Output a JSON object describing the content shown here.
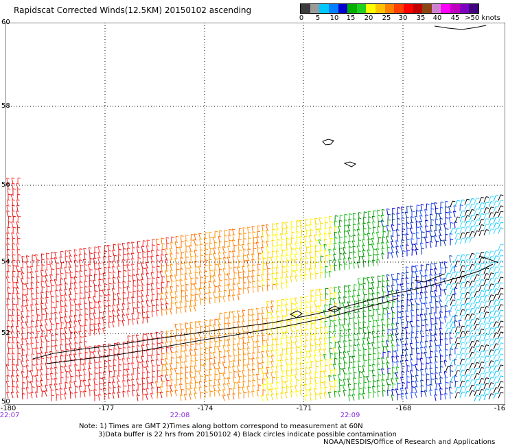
{
  "title": "Rapidscat Corrected Winds(12.5KM) 20150102 ascending",
  "legend": {
    "ticks": [
      "0",
      "5",
      "10",
      "15",
      "20",
      "25",
      "30",
      "35",
      "40",
      "45",
      ">50 knots"
    ],
    "colors": [
      "#3c3c3c",
      "#9a9a9a",
      "#00c8ff",
      "#0080ff",
      "#0000d0",
      "#00b000",
      "#20d020",
      "#ffff00",
      "#ffc000",
      "#ff8000",
      "#ff4000",
      "#ff0000",
      "#c00000",
      "#8b4513",
      "#d080d0",
      "#ff00ff",
      "#c000c0",
      "#8000c0",
      "#400080"
    ]
  },
  "axes": {
    "lat_labels": [
      "60",
      "58",
      "56",
      "54",
      "52",
      "50"
    ],
    "lon_labels": [
      "-180",
      "-177",
      "-174",
      "-171",
      "-168",
      "-16"
    ],
    "times": [
      "22:07",
      "22:08",
      "22:09"
    ]
  },
  "notes": {
    "line1": "Note: 1) Times are GMT 2)Times along bottom correspond to measurement at 60N",
    "line2": "3)Data buffer is 22 hrs from 20150102 4) Black circles indicate possible contamination",
    "line3": "NOAA/NESDIS/Office of Research and Applications"
  },
  "wind_field": {
    "speed_bands": [
      {
        "region": "west",
        "color_name": "red",
        "knots": 32
      },
      {
        "region": "central-west",
        "color_name": "orange",
        "knots": 27
      },
      {
        "region": "central",
        "color_name": "yellow",
        "knots": 22
      },
      {
        "region": "central-east",
        "color_name": "green",
        "knots": 17
      },
      {
        "region": "east",
        "color_name": "blue",
        "knots": 12
      },
      {
        "region": "far-east",
        "color_name": "cyan",
        "knots": 8
      }
    ]
  }
}
